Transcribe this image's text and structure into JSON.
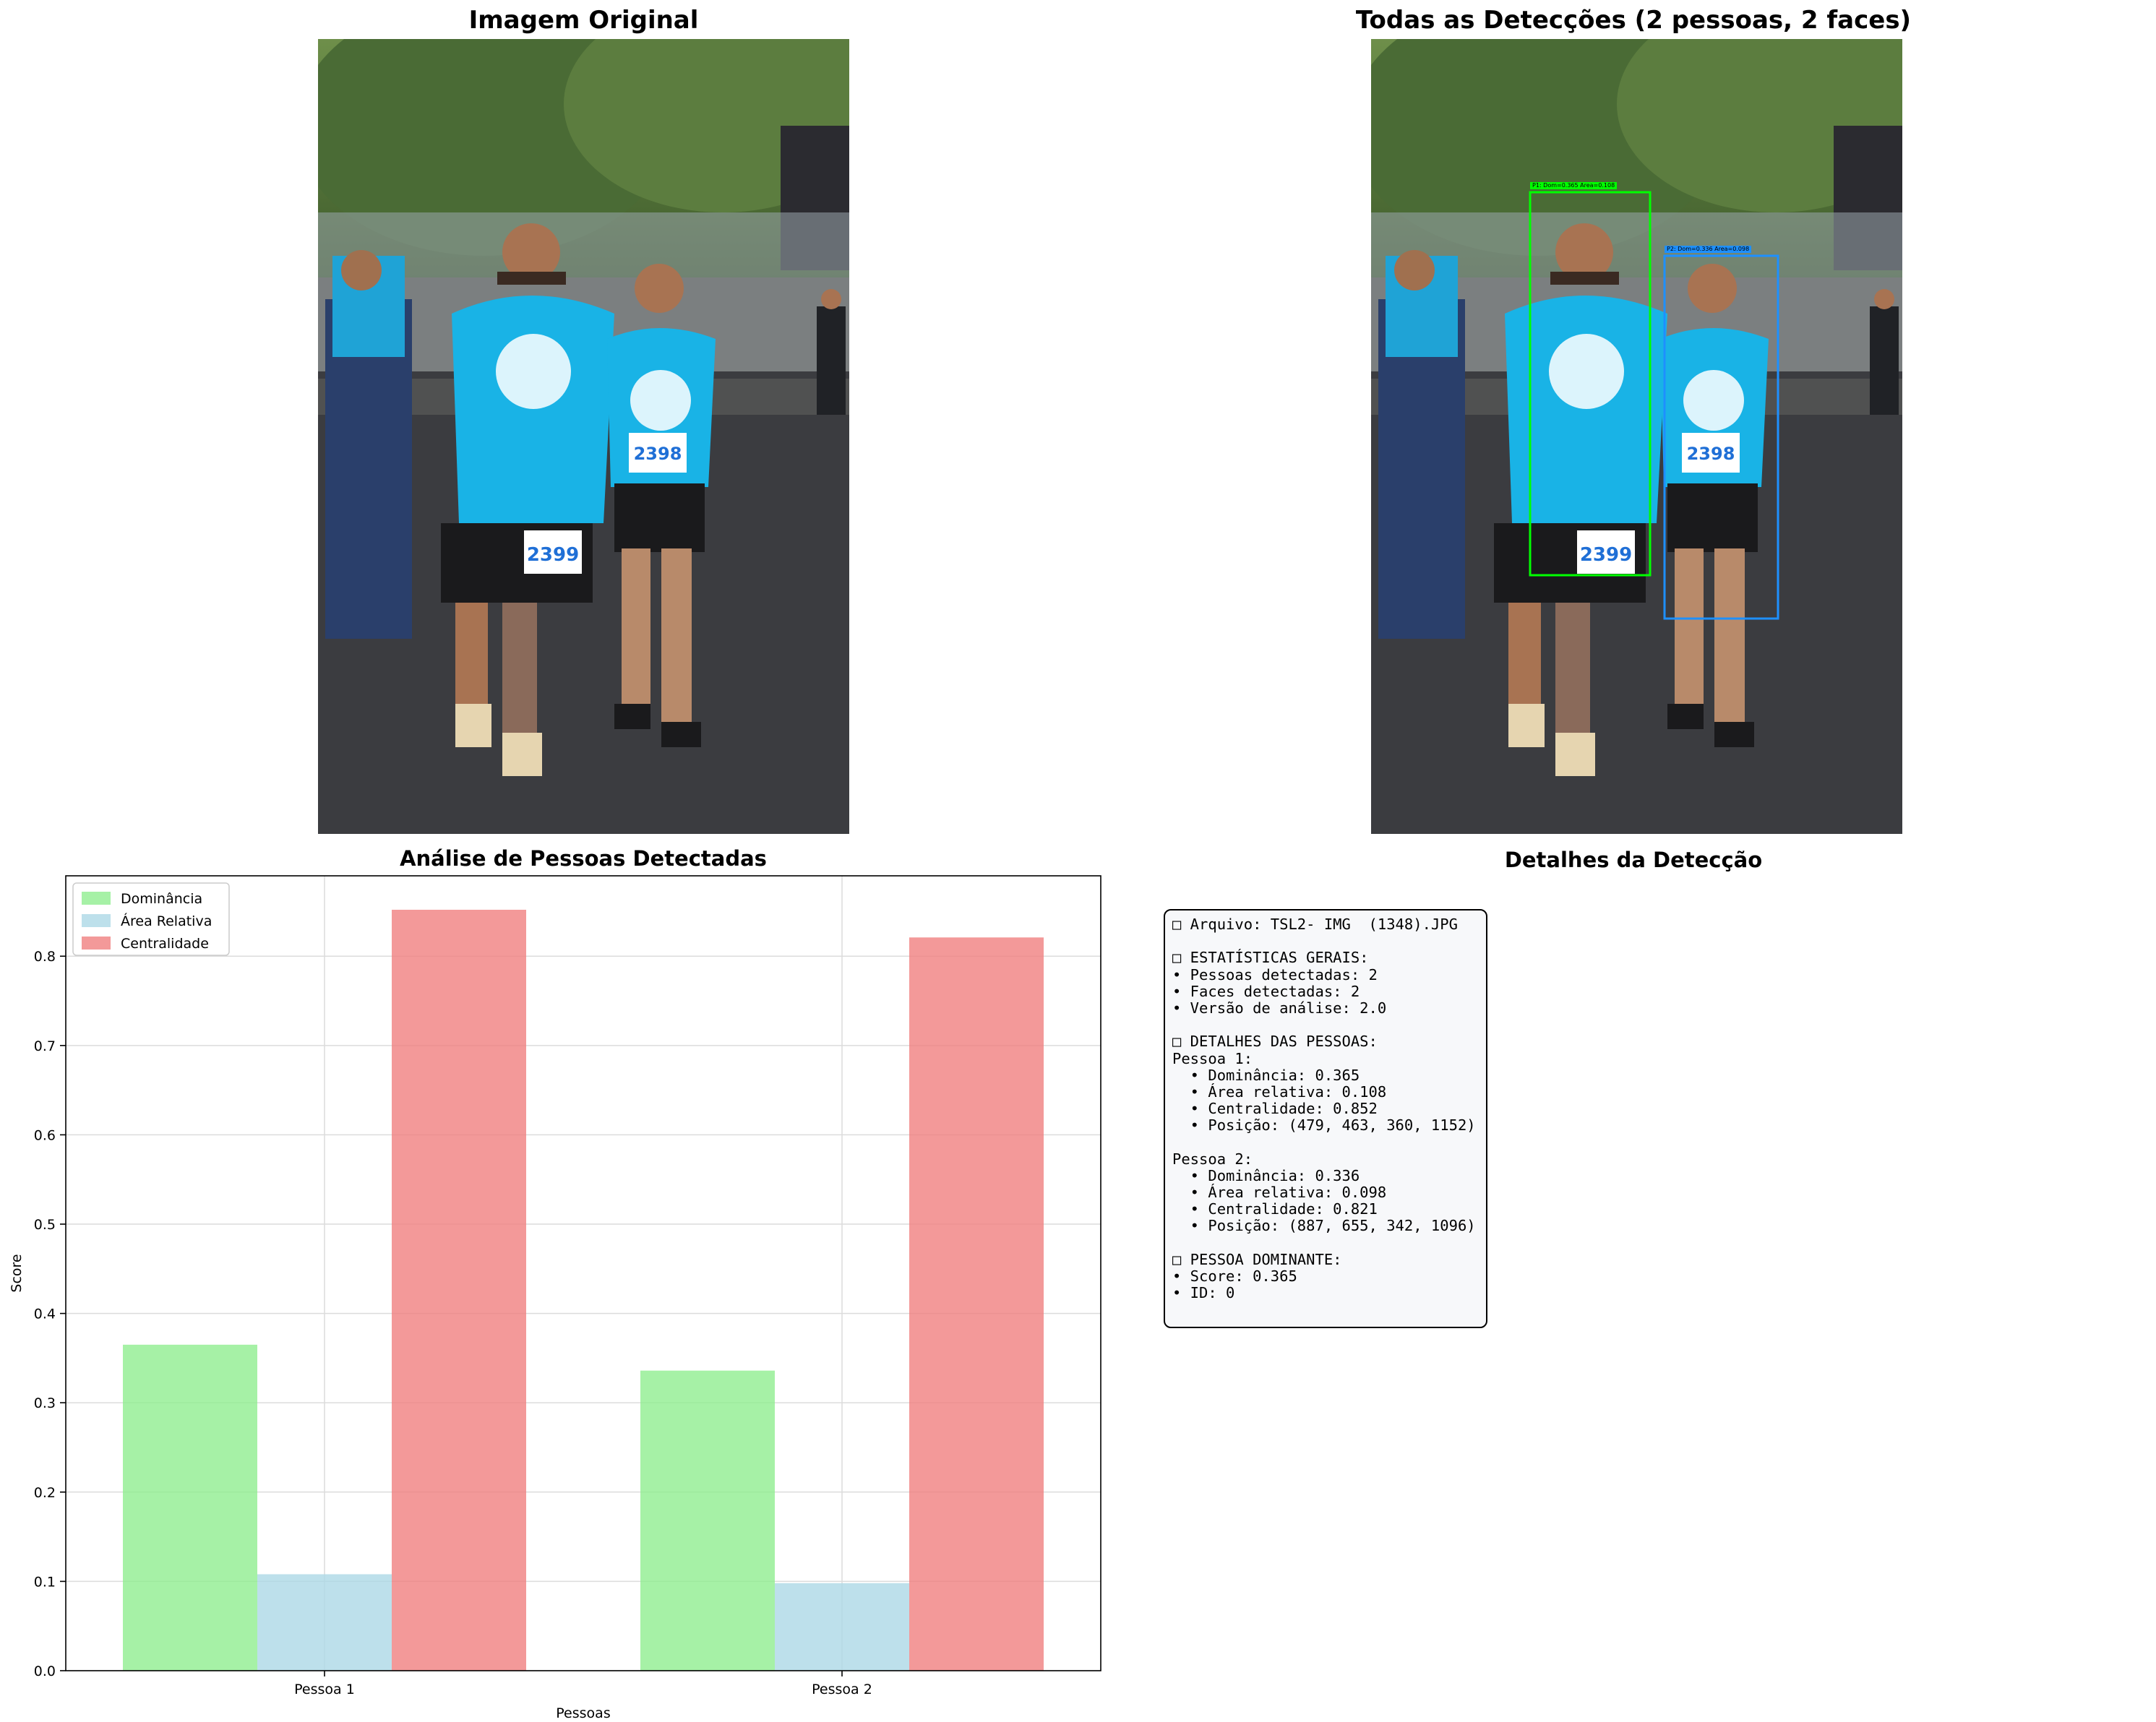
{
  "panels": {
    "original": {
      "title": "Imagem Original"
    },
    "detections": {
      "title": "Todas as Detecções (2 pessoas, 2 faces)",
      "boxes": [
        {
          "label": "P1: Dom=0.365 Area=0.108",
          "color": "#00ff00"
        },
        {
          "label": "P2: Dom=0.336 Area=0.098",
          "color": "#1e90ff"
        }
      ]
    },
    "details_title": "Detalhes da Detecção"
  },
  "photo": {
    "bib_left": "2399",
    "bib_right": "2398"
  },
  "chart_data": {
    "type": "bar",
    "title": "Análise de Pessoas Detectadas",
    "xlabel": "Pessoas",
    "ylabel": "Score",
    "categories": [
      "Pessoa 1",
      "Pessoa 2"
    ],
    "series": [
      {
        "name": "Dominância",
        "values": [
          0.365,
          0.336
        ],
        "color": "#90ee90"
      },
      {
        "name": "Área Relativa",
        "values": [
          0.108,
          0.098
        ],
        "color": "#add8e6"
      },
      {
        "name": "Centralidade",
        "values": [
          0.852,
          0.821
        ],
        "color": "#f08080"
      }
    ],
    "ylim": [
      0,
      0.89
    ],
    "yticks": [
      "0.0",
      "0.1",
      "0.2",
      "0.3",
      "0.4",
      "0.5",
      "0.6",
      "0.7",
      "0.8"
    ],
    "grid": true,
    "legend": "top-left"
  },
  "details": {
    "lines": [
      "□ Arquivo: TSL2- IMG  (1348).JPG",
      "",
      "□ ESTATÍSTICAS GERAIS:",
      "• Pessoas detectadas: 2",
      "• Faces detectadas: 2",
      "• Versão de análise: 2.0",
      "",
      "□ DETALHES DAS PESSOAS:",
      "Pessoa 1:",
      "  • Dominância: 0.365",
      "  • Área relativa: 0.108",
      "  • Centralidade: 0.852",
      "  • Posição: (479, 463, 360, 1152)",
      "",
      "Pessoa 2:",
      "  • Dominância: 0.336",
      "  • Área relativa: 0.098",
      "  • Centralidade: 0.821",
      "  • Posição: (887, 655, 342, 1096)",
      "",
      "□ PESSOA DOMINANTE:",
      "• Score: 0.365",
      "• ID: 0"
    ]
  }
}
